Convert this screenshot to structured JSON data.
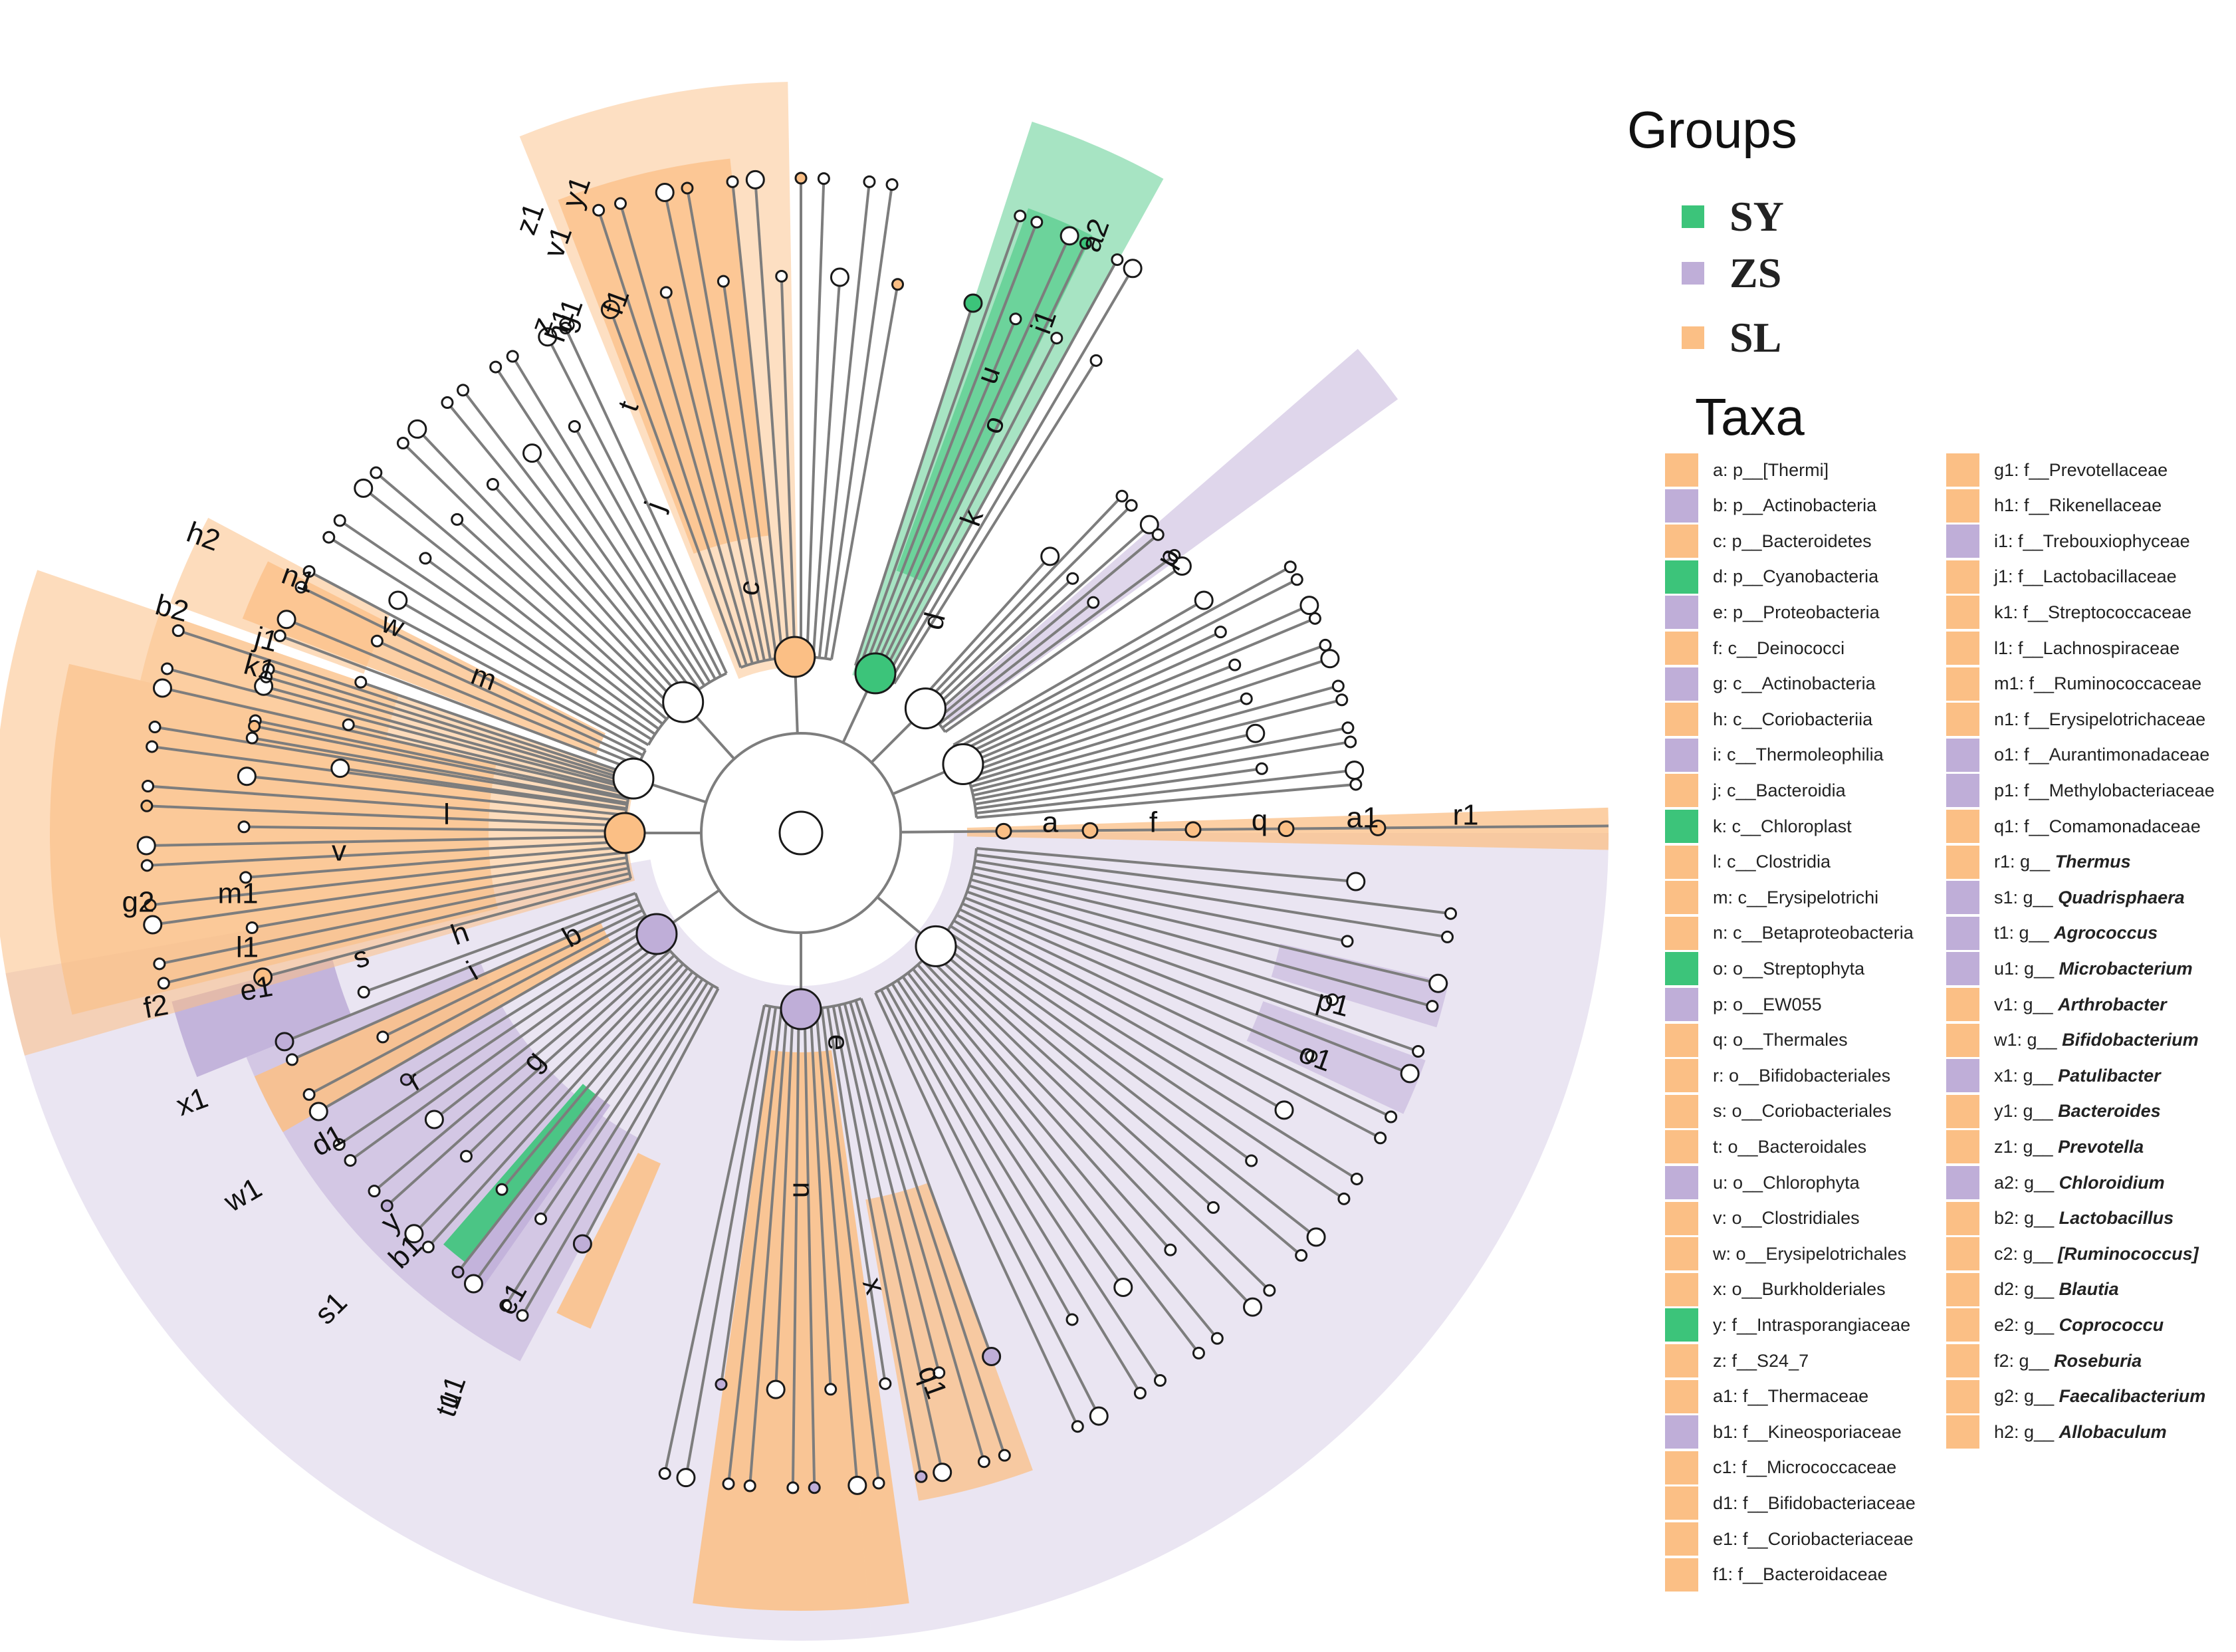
{
  "colors": {
    "SY": "#3cc47a",
    "ZS": "#bfaed8",
    "SL": "#fbbf85",
    "branch": "#7d7d7d"
  },
  "groups": {
    "title": "Groups",
    "items": [
      {
        "key": "SY",
        "label": "SY",
        "color": "#3cc47a"
      },
      {
        "key": "ZS",
        "label": "ZS",
        "color": "#bfaed8"
      },
      {
        "key": "SL",
        "label": "SL",
        "color": "#fbbf85"
      }
    ]
  },
  "taxa": {
    "title": "Taxa",
    "items": [
      {
        "code": "a",
        "text": "a: p__[Thermi]",
        "group": "SL"
      },
      {
        "code": "b",
        "text": "b: p__Actinobacteria",
        "group": "ZS"
      },
      {
        "code": "c",
        "text": "c: p__Bacteroidetes",
        "group": "SL"
      },
      {
        "code": "d",
        "text": "d: p__Cyanobacteria",
        "group": "SY"
      },
      {
        "code": "e",
        "text": "e: p__Proteobacteria",
        "group": "ZS"
      },
      {
        "code": "f",
        "text": "f: c__Deinococci",
        "group": "SL"
      },
      {
        "code": "g",
        "text": "g: c__Actinobacteria",
        "group": "ZS"
      },
      {
        "code": "h",
        "text": "h: c__Coriobacteriia",
        "group": "SL"
      },
      {
        "code": "i",
        "text": "i: c__Thermoleophilia",
        "group": "ZS"
      },
      {
        "code": "j",
        "text": "j: c__Bacteroidia",
        "group": "SL"
      },
      {
        "code": "k",
        "text": "k: c__Chloroplast",
        "group": "SY"
      },
      {
        "code": "l",
        "text": "l: c__Clostridia",
        "group": "SL"
      },
      {
        "code": "m",
        "text": "m: c__Erysipelotrichi",
        "group": "SL"
      },
      {
        "code": "n",
        "text": "n: c__Betaproteobacteria",
        "group": "SL"
      },
      {
        "code": "o",
        "text": "o: o__Streptophyta",
        "group": "SY"
      },
      {
        "code": "p",
        "text": "p: o__EW055",
        "group": "ZS"
      },
      {
        "code": "q",
        "text": "q: o__Thermales",
        "group": "SL"
      },
      {
        "code": "r",
        "text": "r: o__Bifidobacteriales",
        "group": "SL"
      },
      {
        "code": "s",
        "text": "s: o__Coriobacteriales",
        "group": "SL"
      },
      {
        "code": "t",
        "text": "t: o__Bacteroidales",
        "group": "SL"
      },
      {
        "code": "u",
        "text": "u: o__Chlorophyta",
        "group": "ZS"
      },
      {
        "code": "v",
        "text": "v: o__Clostridiales",
        "group": "SL"
      },
      {
        "code": "w",
        "text": "w: o__Erysipelotrichales",
        "group": "SL"
      },
      {
        "code": "x",
        "text": "x: o__Burkholderiales",
        "group": "SL"
      },
      {
        "code": "y",
        "text": "y: f__Intrasporangiaceae",
        "group": "SY"
      },
      {
        "code": "z",
        "text": "z: f__S24_7",
        "group": "SL"
      },
      {
        "code": "a1",
        "text": "a1: f__Thermaceae",
        "group": "SL"
      },
      {
        "code": "b1",
        "text": "b1: f__Kineosporiaceae",
        "group": "ZS"
      },
      {
        "code": "c1",
        "text": "c1: f__Micrococcaceae",
        "group": "SL"
      },
      {
        "code": "d1",
        "text": "d1: f__Bifidobacteriaceae",
        "group": "SL"
      },
      {
        "code": "e1",
        "text": "e1: f__Coriobacteriaceae",
        "group": "SL"
      },
      {
        "code": "f1",
        "text": "f1: f__Bacteroidaceae",
        "group": "SL"
      },
      {
        "code": "g1",
        "text": "g1: f__Prevotellaceae",
        "group": "SL"
      },
      {
        "code": "h1",
        "text": "h1: f__Rikenellaceae",
        "group": "SL"
      },
      {
        "code": "i1",
        "text": "i1: f__Trebouxiophyceae",
        "group": "ZS"
      },
      {
        "code": "j1",
        "text": "j1: f__Lactobacillaceae",
        "group": "SL"
      },
      {
        "code": "k1",
        "text": "k1: f__Streptococcaceae",
        "group": "SL"
      },
      {
        "code": "l1",
        "text": "l1: f__Lachnospiraceae",
        "group": "SL"
      },
      {
        "code": "m1",
        "text": "m1: f__Ruminococcaceae",
        "group": "SL"
      },
      {
        "code": "n1",
        "text": "n1: f__Erysipelotrichaceae",
        "group": "SL"
      },
      {
        "code": "o1",
        "text": "o1: f__Aurantimonadaceae",
        "group": "ZS"
      },
      {
        "code": "p1",
        "text": "p1: f__Methylobacteriaceae",
        "group": "ZS"
      },
      {
        "code": "q1",
        "text": "q1: f__Comamonadaceae",
        "group": "SL"
      },
      {
        "code": "r1",
        "text": "r1: g__",
        "genus": "Thermus",
        "group": "SL"
      },
      {
        "code": "s1",
        "text": "s1: g__",
        "genus": "Quadrisphaera",
        "group": "ZS"
      },
      {
        "code": "t1",
        "text": "t1: g__",
        "genus": "Agrococcus",
        "group": "ZS"
      },
      {
        "code": "u1",
        "text": "u1: g__",
        "genus": "Microbacterium",
        "group": "ZS"
      },
      {
        "code": "v1",
        "text": "v1: g__",
        "genus": "Arthrobacter",
        "group": "SL"
      },
      {
        "code": "w1",
        "text": "w1: g__",
        "genus": "Bifidobacterium",
        "group": "SL"
      },
      {
        "code": "x1",
        "text": "x1: g__",
        "genus": "Patulibacter",
        "group": "ZS"
      },
      {
        "code": "y1",
        "text": "y1: g__",
        "genus": "Bacteroides",
        "group": "SL"
      },
      {
        "code": "z1",
        "text": "z1: g__",
        "genus": "Prevotella",
        "group": "SL"
      },
      {
        "code": "a2",
        "text": "a2: g__",
        "genus": "Chloroidium",
        "group": "ZS"
      },
      {
        "code": "b2",
        "text": "b2: g__",
        "genus": "Lactobacillus",
        "group": "SL"
      },
      {
        "code": "c2",
        "text": "c2: g__",
        "genus": "[Ruminococcus]",
        "group": "SL"
      },
      {
        "code": "d2",
        "text": "d2: g__",
        "genus": "Blautia",
        "group": "SL"
      },
      {
        "code": "e2",
        "text": "e2: g__",
        "genus": "Coprococcu",
        "group": "SL"
      },
      {
        "code": "f2",
        "text": "f2: g__",
        "genus": "Roseburia",
        "group": "SL"
      },
      {
        "code": "g2",
        "text": "g2: g__",
        "genus": "Faecalibacterium",
        "group": "SL"
      },
      {
        "code": "h2",
        "text": "h2: g__",
        "genus": "Allobaculum",
        "group": "SL"
      }
    ]
  },
  "diagram": {
    "type": "cladogram",
    "highlights": [
      {
        "node": "a",
        "group": "SL"
      },
      {
        "node": "b",
        "group": "ZS"
      },
      {
        "node": "c",
        "group": "SL"
      },
      {
        "node": "d",
        "group": "SY"
      },
      {
        "node": "e",
        "group": "ZS"
      },
      {
        "node": "h",
        "group": "SL"
      },
      {
        "node": "l",
        "group": "SL"
      },
      {
        "node": "m",
        "group": "SL"
      },
      {
        "node": "n",
        "group": "SL"
      },
      {
        "node": "p",
        "group": "ZS"
      },
      {
        "node": "r",
        "group": "SL"
      },
      {
        "node": "t",
        "group": "SL"
      },
      {
        "node": "u",
        "group": "ZS"
      },
      {
        "node": "x",
        "group": "SL"
      }
    ],
    "node_labels": [
      "a",
      "f",
      "q",
      "a1",
      "r1",
      "b",
      "c",
      "d",
      "e",
      "g",
      "h",
      "i",
      "j",
      "k",
      "l",
      "m",
      "n",
      "o",
      "p",
      "r",
      "s",
      "t",
      "u",
      "v",
      "w",
      "x",
      "y",
      "z",
      "b1",
      "c1",
      "d1",
      "e1",
      "f1",
      "g1",
      "h1",
      "i1",
      "j1",
      "k1",
      "l1",
      "m1",
      "n1",
      "o1",
      "p1",
      "q1",
      "s1",
      "t1",
      "u1",
      "v1",
      "w1",
      "x1",
      "y1",
      "z1",
      "a2",
      "b2",
      "c2",
      "d2",
      "e2",
      "f2",
      "g2",
      "h2"
    ]
  }
}
